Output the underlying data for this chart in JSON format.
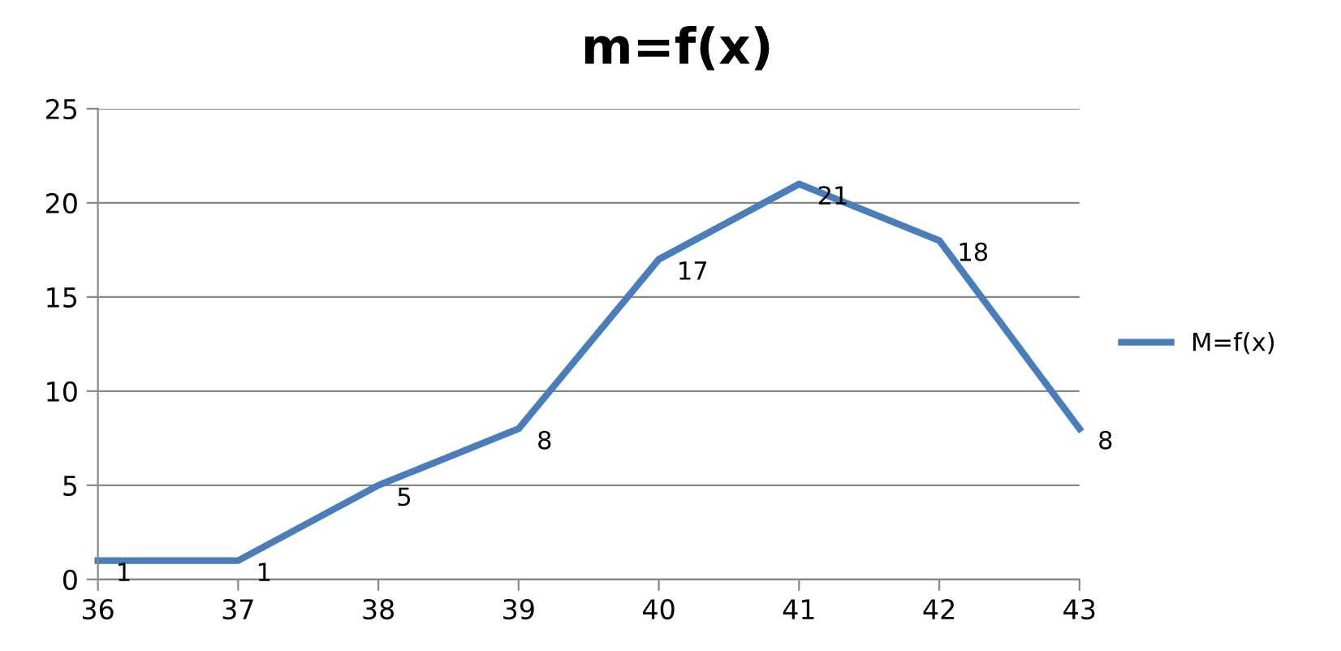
{
  "chart_data": {
    "type": "line",
    "title": "m=f(x)",
    "x": [
      36,
      37,
      38,
      39,
      40,
      41,
      42,
      43
    ],
    "series": [
      {
        "name": "M=f(x)",
        "color": "#4a7ebb",
        "values": [
          1,
          1,
          5,
          8,
          17,
          21,
          18,
          8
        ]
      }
    ],
    "xlim": [
      36,
      43
    ],
    "xticks": [
      36,
      37,
      38,
      39,
      40,
      41,
      42,
      43
    ],
    "ylim": [
      0,
      25
    ],
    "yticks": [
      0,
      5,
      10,
      15,
      20,
      25
    ],
    "grid": "y",
    "legend": "right",
    "data_labels": true,
    "marker": "none",
    "line_style": "solid"
  }
}
